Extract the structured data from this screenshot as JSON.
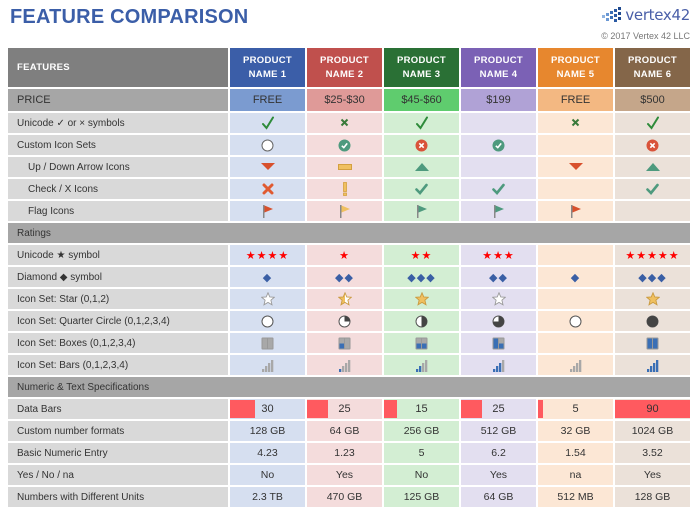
{
  "header": {
    "title": "FEATURE COMPARISON",
    "logo_text": "vertex42",
    "copyright": "© 2017 Vertex 42 LLC"
  },
  "table": {
    "features_header": "FEATURES",
    "products": [
      {
        "line1": "PRODUCT",
        "line2": "NAME 1",
        "header_color": "#3b5ea8",
        "price_color": "#7b9bd0",
        "cell_color": "#d6dff0"
      },
      {
        "line1": "PRODUCT",
        "line2": "NAME 2",
        "header_color": "#c0504d",
        "price_color": "#df9a98",
        "cell_color": "#f4dcdc"
      },
      {
        "line1": "PRODUCT",
        "line2": "NAME 3",
        "header_color": "#2a7035",
        "price_color": "#5fcc6e",
        "cell_color": "#d3eed3"
      },
      {
        "line1": "PRODUCT",
        "line2": "NAME 4",
        "header_color": "#7b61b5",
        "price_color": "#b0a2d6",
        "cell_color": "#e3dff0"
      },
      {
        "line1": "PRODUCT",
        "line2": "NAME 5",
        "header_color": "#e7872e",
        "price_color": "#f3b882",
        "cell_color": "#fce7d5"
      },
      {
        "line1": "PRODUCT",
        "line2": "NAME 6",
        "header_color": "#846649",
        "price_color": "#c5a68a",
        "cell_color": "#ebe1d9"
      }
    ],
    "price": {
      "label": "PRICE",
      "values": [
        "FREE",
        "$25-$30",
        "$45-$60",
        "$199",
        "FREE",
        "$500"
      ]
    },
    "rows_icons": [
      {
        "label": "Unicode ✓ or × symbols",
        "indent": false,
        "values": [
          "check",
          "x-small",
          "check",
          "",
          "x-small",
          "check"
        ]
      },
      {
        "label": "Custom Icon Sets",
        "indent": false,
        "values": [
          "circle-empty",
          "circle-check",
          "circle-x",
          "circle-check",
          "",
          "circle-x"
        ]
      },
      {
        "label": "Up / Down Arrow Icons",
        "indent": true,
        "values": [
          "down",
          "flat",
          "up",
          "",
          "down",
          "up"
        ]
      },
      {
        "label": "Check / X Icons",
        "indent": true,
        "values": [
          "x-red",
          "exclaim",
          "check-teal",
          "check-teal",
          "",
          "check-teal"
        ]
      },
      {
        "label": "Flag Icons",
        "indent": true,
        "values": [
          "flag-red",
          "flag-yellow",
          "flag-green",
          "flag-green",
          "flag-red",
          ""
        ]
      }
    ],
    "section_ratings": "Ratings",
    "ratings": {
      "unicode_star": {
        "label": "Unicode ★ symbol",
        "values": [
          "★★★★",
          "★",
          "★★",
          "★★★",
          "",
          "★★★★★"
        ]
      },
      "diamond": {
        "label": "Diamond ◆ symbol",
        "values": [
          "◆",
          "◆◆",
          "◆◆◆",
          "◆◆",
          "◆",
          "◆◆◆"
        ]
      },
      "star_set": {
        "label": "Icon Set: Star (0,1,2)",
        "values": [
          0,
          1,
          2,
          0,
          null,
          2
        ]
      },
      "quarter": {
        "label": "Icon Set: Quarter Circle (0,1,2,3,4)",
        "values": [
          0,
          1,
          2,
          3,
          0,
          4
        ]
      },
      "boxes": {
        "label": "Icon Set: Boxes (0,1,2,3,4)",
        "values": [
          0,
          1,
          2,
          3,
          null,
          4
        ]
      },
      "bars": {
        "label": "Icon Set: Bars (0,1,2,3,4)",
        "values": [
          0,
          1,
          2,
          3,
          0,
          4
        ]
      }
    },
    "section_numeric": "Numeric & Text Specifications",
    "numeric": {
      "data_bars": {
        "label": "Data Bars",
        "values": [
          "30",
          "25",
          "15",
          "25",
          "5",
          "90"
        ],
        "bar_pct": [
          33,
          28,
          17,
          28,
          6,
          100
        ],
        "bar_color": "#ff5a5f"
      },
      "custom_formats": {
        "label": "Custom number formats",
        "values": [
          "128 GB",
          "64 GB",
          "256 GB",
          "512 GB",
          "32 GB",
          "1024 GB"
        ]
      },
      "basic_numeric": {
        "label": "Basic Numeric Entry",
        "values": [
          "4.23",
          "1.23",
          "5",
          "6.2",
          "1.54",
          "3.52"
        ]
      },
      "yes_no": {
        "label": "Yes / No / na",
        "values": [
          "No",
          "Yes",
          "No",
          "Yes",
          "na",
          "Yes"
        ]
      },
      "units": {
        "label": "Numbers with Different Units",
        "values": [
          "2.3 TB",
          "470 GB",
          "125 GB",
          "64 GB",
          "512 MB",
          "128 GB"
        ]
      }
    }
  }
}
